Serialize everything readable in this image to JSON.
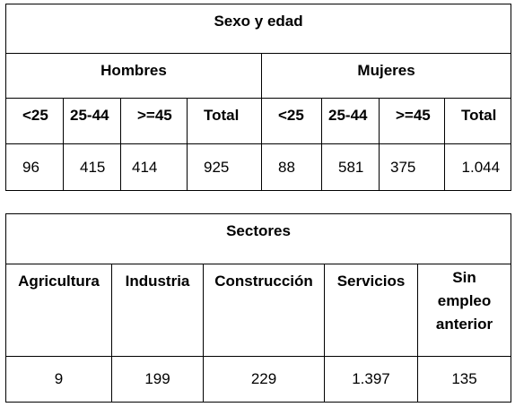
{
  "table_sexo_edad": {
    "title": "Sexo y edad",
    "groups": {
      "men": "Hombres",
      "women": "Mujeres"
    },
    "age_headers": {
      "men": [
        "<25",
        "25-44",
        ">=45",
        "Total"
      ],
      "women": [
        "<25",
        "25-44",
        ">=45",
        "Total"
      ]
    },
    "values": {
      "men": [
        "96",
        "415",
        "414",
        "925"
      ],
      "women": [
        "88",
        "581",
        "375",
        "1.044"
      ]
    }
  },
  "table_sectores": {
    "title": "Sectores",
    "headers": [
      "Agricultura",
      "Industria",
      "Construcción",
      "Servicios"
    ],
    "last_header_lines": [
      "Sin",
      "empleo",
      "anterior"
    ],
    "values": [
      "9",
      "199",
      "229",
      "1.397",
      "135"
    ]
  }
}
